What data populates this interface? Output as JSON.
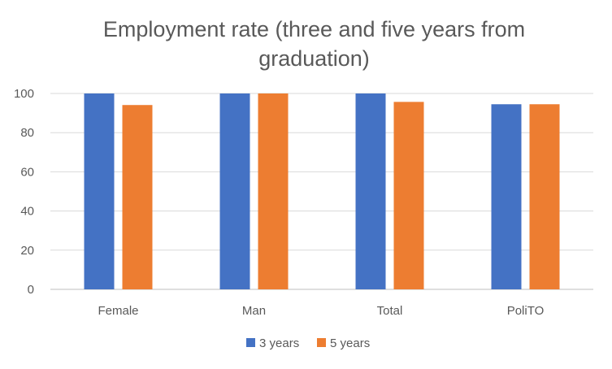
{
  "chart_data": {
    "type": "bar",
    "title": "Employment rate (three and five years from graduation)",
    "xlabel": "",
    "ylabel": "",
    "categories": [
      "Female",
      "Man",
      "Total",
      "PoliTO"
    ],
    "series": [
      {
        "name": "3 years",
        "values": [
          100,
          100,
          100,
          94.5
        ],
        "color": "#4472C4"
      },
      {
        "name": "5 years",
        "values": [
          94.1,
          100,
          95.7,
          94.5
        ],
        "color": "#ED7D31"
      }
    ],
    "ylim": [
      0,
      100
    ],
    "yticks": [
      "0",
      "20",
      "40",
      "60",
      "80",
      "100"
    ],
    "grid": true,
    "legend": "bottom"
  }
}
